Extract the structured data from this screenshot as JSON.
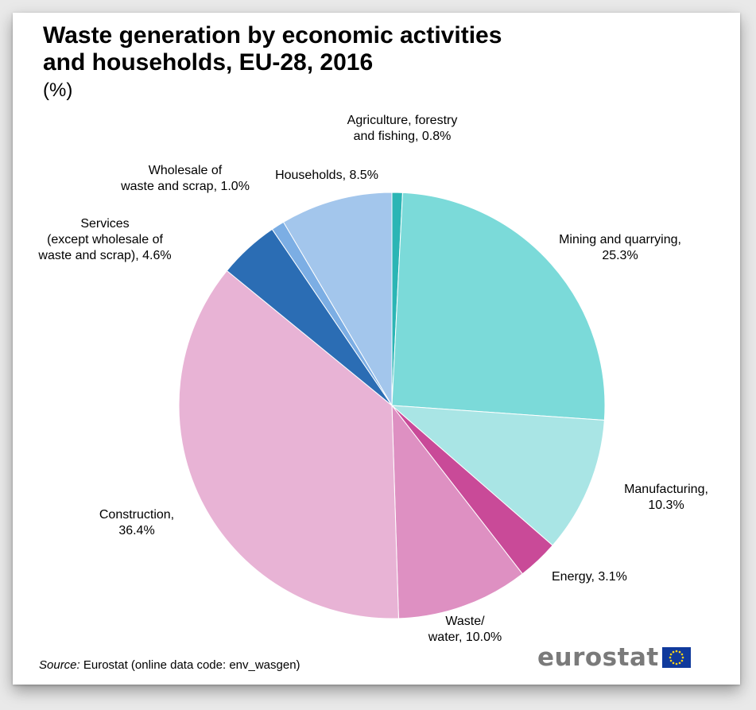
{
  "chart_data": {
    "type": "pie",
    "title_lines": [
      "Waste generation by economic activities",
      "and households, EU-28, 2016"
    ],
    "subtitle": "(%)",
    "slices": [
      {
        "label_lines": [
          "Agriculture, forestry",
          "and fishing, 0.8%"
        ],
        "value": 0.8,
        "color": "#2bb5b5"
      },
      {
        "label_lines": [
          "Mining and quarrying,",
          "25.3%"
        ],
        "value": 25.3,
        "color": "#7bdad9"
      },
      {
        "label_lines": [
          "Manufacturing,",
          "10.3%"
        ],
        "value": 10.3,
        "color": "#a9e5e5"
      },
      {
        "label_lines": [
          "Energy, 3.1%"
        ],
        "value": 3.1,
        "color": "#c94a98"
      },
      {
        "label_lines": [
          "Waste/",
          "water, 10.0%"
        ],
        "value": 10.0,
        "color": "#de90c2"
      },
      {
        "label_lines": [
          "Construction,",
          "36.4%"
        ],
        "value": 36.4,
        "color": "#e8b3d5"
      },
      {
        "label_lines": [
          "Services",
          "(except wholesale of",
          "waste and scrap), 4.6%"
        ],
        "value": 4.6,
        "color": "#2b6db4"
      },
      {
        "label_lines": [
          "Wholesale of",
          "waste and scrap, 1.0%"
        ],
        "value": 1.0,
        "color": "#7caee4"
      },
      {
        "label_lines": [
          "Households, 8.5%"
        ],
        "value": 8.5,
        "color": "#a3c6ec"
      }
    ],
    "start_angle": "12 o'clock",
    "direction": "clockwise"
  },
  "source": {
    "label": "Source:",
    "text": " Eurostat (online data code: env_wasgen)"
  },
  "brand": {
    "wordmark": "eurostat",
    "flag_color": "#103a9c",
    "star_color": "#ffd617"
  }
}
